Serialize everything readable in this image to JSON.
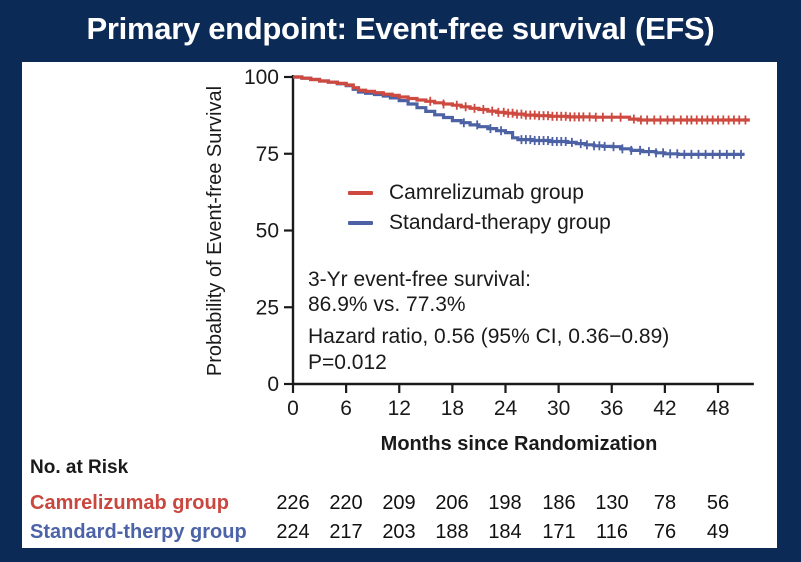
{
  "slide": {
    "title": "Primary endpoint: Event-free survival (EFS)",
    "colors": {
      "background": "#0C2A56",
      "panel": "#FFFFFF",
      "red": "#CE4A41",
      "blue": "#4D62A4",
      "axis": "#1A1A1A",
      "risk_label_red": "#C9473E",
      "risk_label_blue": "#4C63A8"
    }
  },
  "chart_data": {
    "type": "line",
    "subtype": "kaplan-meier-step-survival",
    "title": "",
    "xlabel": "Months since Randomization",
    "ylabel": "Probability of Event-free Survival",
    "xlim": [
      0,
      51.6
    ],
    "ylim": [
      0,
      100
    ],
    "x_ticks": [
      0,
      6,
      12,
      18,
      24,
      30,
      36,
      42,
      48
    ],
    "y_ticks": [
      100,
      75,
      50,
      25,
      0
    ],
    "grid": false,
    "legend_position": "upper-center-left inside plot",
    "series": [
      {
        "name": "Camrelizumab group",
        "color": "#CE4A41",
        "steps": [
          [
            0,
            100
          ],
          [
            1,
            99.6
          ],
          [
            2,
            99.2
          ],
          [
            3,
            98.7
          ],
          [
            4,
            98.3
          ],
          [
            5,
            97.9
          ],
          [
            6,
            97.4
          ],
          [
            6.8,
            96.5
          ],
          [
            7.4,
            95.7
          ],
          [
            8.2,
            95.3
          ],
          [
            9.2,
            94.9
          ],
          [
            10.2,
            94.4
          ],
          [
            11.2,
            94.0
          ],
          [
            12,
            93.5
          ],
          [
            13,
            93.0
          ],
          [
            14,
            92.5
          ],
          [
            15,
            92.1
          ],
          [
            16,
            91.6
          ],
          [
            17,
            91.2
          ],
          [
            18,
            90.8
          ],
          [
            19,
            90.3
          ],
          [
            20,
            89.8
          ],
          [
            21,
            89.4
          ],
          [
            22,
            88.9
          ],
          [
            23,
            88.5
          ],
          [
            24,
            88.2
          ],
          [
            25,
            87.9
          ],
          [
            26.2,
            87.6
          ],
          [
            27.5,
            87.4
          ],
          [
            29,
            87.2
          ],
          [
            31,
            87.0
          ],
          [
            34,
            86.9
          ],
          [
            38,
            86.3
          ],
          [
            39,
            86.0
          ],
          [
            51.6,
            86.0
          ]
        ],
        "censor_months": [
          15.5,
          17,
          18.5,
          19.5,
          20.5,
          21.5,
          22.5,
          23.2,
          23.8,
          24.3,
          24.8,
          25.3,
          25.8,
          26.3,
          26.8,
          27.3,
          27.8,
          28.3,
          28.8,
          29.3,
          29.8,
          30.3,
          30.8,
          31.3,
          31.8,
          32.3,
          32.8,
          33.5,
          34.2,
          35,
          36,
          37,
          38.5,
          39.3,
          40,
          40.8,
          41.5,
          42.3,
          43,
          43.8,
          44.5,
          45,
          45.6,
          46.2,
          46.8,
          47.4,
          48,
          48.6,
          49.2,
          49.8,
          50.4,
          51.1
        ]
      },
      {
        "name": "Standard-therapy group",
        "color": "#4D62A4",
        "steps": [
          [
            0,
            100
          ],
          [
            1,
            99.6
          ],
          [
            2,
            99.2
          ],
          [
            3,
            98.7
          ],
          [
            4,
            98.3
          ],
          [
            5,
            97.8
          ],
          [
            6,
            97.2
          ],
          [
            6.8,
            96.0
          ],
          [
            7.4,
            95.1
          ],
          [
            8.2,
            94.7
          ],
          [
            9.2,
            94.3
          ],
          [
            10.2,
            93.8
          ],
          [
            11,
            93.2
          ],
          [
            12,
            92.3
          ],
          [
            13,
            91.2
          ],
          [
            14,
            90.0
          ],
          [
            15,
            88.8
          ],
          [
            16,
            87.7
          ],
          [
            17,
            86.8
          ],
          [
            18,
            85.8
          ],
          [
            19,
            85.1
          ],
          [
            20,
            84.4
          ],
          [
            21,
            83.8
          ],
          [
            22,
            83.2
          ],
          [
            23,
            82.5
          ],
          [
            24,
            81.9
          ],
          [
            24.8,
            80.2
          ],
          [
            25.4,
            79.6
          ],
          [
            27,
            79.3
          ],
          [
            29,
            79.0
          ],
          [
            31,
            78.7
          ],
          [
            32,
            78.3
          ],
          [
            33,
            77.9
          ],
          [
            34,
            77.6
          ],
          [
            35,
            77.4
          ],
          [
            36,
            77.3
          ],
          [
            37,
            76.6
          ],
          [
            38.2,
            76.1
          ],
          [
            39.5,
            75.7
          ],
          [
            41,
            75.3
          ],
          [
            42,
            75.0
          ],
          [
            43.5,
            74.8
          ],
          [
            51,
            74.8
          ]
        ],
        "censor_months": [
          19.3,
          20.8,
          22.3,
          23.5,
          25.8,
          26.3,
          26.8,
          27.3,
          27.8,
          28.3,
          28.8,
          29.3,
          29.8,
          30.3,
          30.8,
          31.5,
          32.5,
          33.2,
          34,
          34.6,
          35.2,
          36.2,
          37.2,
          38.2,
          39.2,
          40.2,
          41,
          41.8,
          42.6,
          43.4,
          44.2,
          45,
          45.8,
          46.6,
          47.4,
          48.2,
          49,
          49.8,
          50.6
        ]
      }
    ],
    "annotation": {
      "line1": "3-Yr event-free survival:",
      "line2": "86.9% vs. 77.3%",
      "line3": "Hazard ratio, 0.56 (95% CI, 0.36−0.89)",
      "line4": "P=0.012"
    },
    "risk_table": {
      "header": "No. at Risk",
      "columns_months": [
        0,
        6,
        12,
        18,
        24,
        30,
        36,
        42,
        48
      ],
      "rows": [
        {
          "label": "Camrelizumab group",
          "color": "#C9473E",
          "counts": [
            226,
            220,
            209,
            206,
            198,
            186,
            130,
            78,
            56
          ]
        },
        {
          "label": "Standard-therpy group",
          "color": "#4C63A8",
          "counts": [
            224,
            217,
            203,
            188,
            184,
            171,
            116,
            76,
            49
          ]
        }
      ]
    }
  }
}
